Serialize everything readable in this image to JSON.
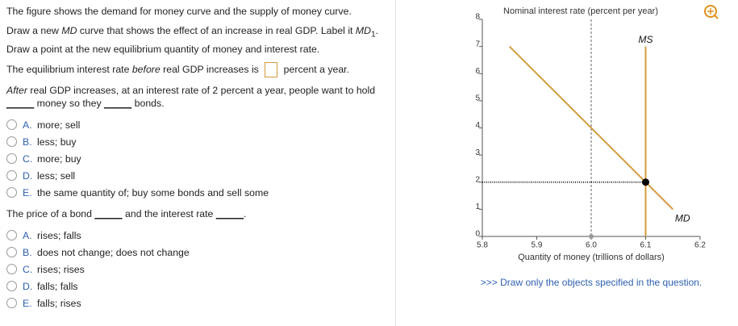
{
  "question": {
    "intro": "The figure shows the demand for money curve and the supply of money curve.",
    "instruction": [
      "Draw a new ",
      "MD",
      " curve that shows the effect of an increase in real GDP. Label it ",
      "MD",
      "1",
      "."
    ],
    "instruction2": "Draw a point at the new equilibrium quantity of money and interest rate.",
    "q1": [
      "The equilibrium interest rate ",
      "before",
      " real GDP increases is ",
      " percent a year."
    ],
    "q2": [
      "After",
      " real GDP increases, at an interest rate of 2 percent a year, people want to hold ",
      "_____",
      " money so they ",
      "_____",
      " bonds."
    ],
    "q2_options": [
      [
        "A.",
        "more; sell"
      ],
      [
        "B.",
        "less; buy"
      ],
      [
        "C.",
        "more; buy"
      ],
      [
        "D.",
        "less; sell"
      ],
      [
        "E.",
        "the same quantity of; buy some bonds and sell some"
      ]
    ],
    "q3": [
      "The price of a bond ",
      "_____",
      " and the interest rate ",
      "_____",
      "."
    ],
    "q3_options": [
      [
        "A.",
        "rises; falls"
      ],
      [
        "B.",
        "does not change; does not change"
      ],
      [
        "C.",
        "rises; rises"
      ],
      [
        "D.",
        "falls; falls"
      ],
      [
        "E.",
        "falls; rises"
      ]
    ],
    "note": ">>> Draw only the objects specified in the question."
  },
  "chart_data": {
    "type": "line",
    "title": "Nominal interest rate (percent per year)",
    "x_label": "Quantity of money (trillions of dollars)",
    "xlim": [
      5.8,
      6.2
    ],
    "ylim": [
      0,
      8
    ],
    "xticks": [
      5.8,
      5.9,
      {
        "value": 6,
        "label": "6.0"
      },
      6.1,
      6.2
    ],
    "yticks": [
      0,
      1,
      2,
      3,
      4,
      5,
      6,
      7,
      8
    ],
    "guide_x": 6,
    "series": [
      {
        "name": "MS",
        "color": "#d39b3c",
        "x": [
          6.1,
          6.1
        ],
        "values": [
          0,
          7
        ]
      },
      {
        "name": "MD",
        "color": "#d39b3c",
        "x": [
          5.85,
          6.15
        ],
        "values": [
          7,
          1
        ]
      }
    ],
    "points": [
      {
        "x": 6.1,
        "y": 2,
        "color": "#000000"
      },
      {
        "x": 6,
        "y": 0,
        "color": "#9a9a9a"
      }
    ]
  }
}
